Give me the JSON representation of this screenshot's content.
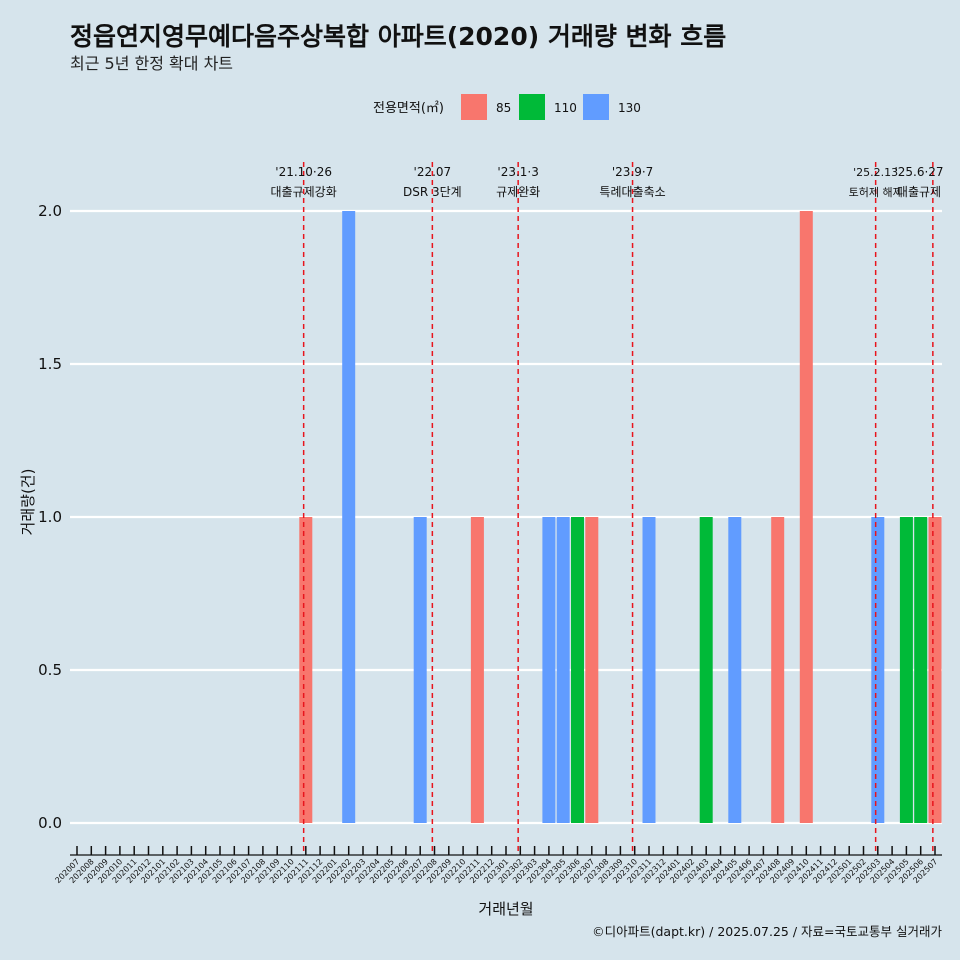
{
  "chart_data": {
    "type": "bar",
    "title": "정읍연지영무예다음주상복합 아파트(2020) 거래량 변화 흐름",
    "subtitle": "최근 5년 한정 확대 차트",
    "xlabel": "거래년월",
    "ylabel": "거래량(건)",
    "caption": "©디아파트(dapt.kr) / 2025.07.25 / 자료=국토교통부 실거래가",
    "ylim": [
      -0.08,
      2.1
    ],
    "yticks": [
      0.0,
      0.5,
      1.0,
      1.5,
      2.0
    ],
    "ytick_labels": [
      "0.0",
      "0.5",
      "1.0",
      "1.5",
      "2.0"
    ],
    "grid": true,
    "legend": {
      "title": "전용면적(㎡)",
      "position": "top",
      "entries": [
        {
          "label": "85",
          "color": "#f8766d"
        },
        {
          "label": "110",
          "color": "#00ba38"
        },
        {
          "label": "130",
          "color": "#619cff"
        }
      ]
    },
    "categories": [
      "202007",
      "202008",
      "202009",
      "202010",
      "202011",
      "202012",
      "202101",
      "202102",
      "202103",
      "202104",
      "202105",
      "202106",
      "202107",
      "202108",
      "202109",
      "202110",
      "202111",
      "202112",
      "202201",
      "202202",
      "202203",
      "202204",
      "202205",
      "202206",
      "202207",
      "202208",
      "202209",
      "202210",
      "202211",
      "202212",
      "202301",
      "202302",
      "202303",
      "202304",
      "202305",
      "202306",
      "202307",
      "202308",
      "202309",
      "202310",
      "202311",
      "202312",
      "202401",
      "202402",
      "202403",
      "202404",
      "202405",
      "202406",
      "202407",
      "202408",
      "202409",
      "202410",
      "202411",
      "202412",
      "202501",
      "202502",
      "202503",
      "202504",
      "202505",
      "202506",
      "202507"
    ],
    "bars": [
      {
        "month": "202111",
        "area": "85",
        "value": 1
      },
      {
        "month": "202202",
        "area": "130",
        "value": 2
      },
      {
        "month": "202207",
        "area": "130",
        "value": 1
      },
      {
        "month": "202211",
        "area": "85",
        "value": 1
      },
      {
        "month": "202304",
        "area": "130",
        "value": 1
      },
      {
        "month": "202305",
        "area": "130",
        "value": 1
      },
      {
        "month": "202306",
        "area": "110",
        "value": 1
      },
      {
        "month": "202307",
        "area": "85",
        "value": 1
      },
      {
        "month": "202311",
        "area": "130",
        "value": 1
      },
      {
        "month": "202403",
        "area": "110",
        "value": 1
      },
      {
        "month": "202405",
        "area": "130",
        "value": 1
      },
      {
        "month": "202408",
        "area": "85",
        "value": 1
      },
      {
        "month": "202410",
        "area": "85",
        "value": 2
      },
      {
        "month": "202503",
        "area": "130",
        "value": 1
      },
      {
        "month": "202505",
        "area": "110",
        "value": 1
      },
      {
        "month": "202506",
        "area": "110",
        "value": 1
      },
      {
        "month": "202507",
        "area": "85",
        "value": 1
      }
    ],
    "annotations": [
      {
        "month_pos": 15.85,
        "line1": "'21.10·26",
        "line2": "대출규제강화"
      },
      {
        "month_pos": 24.85,
        "line1": "'22.07",
        "line2": "DSR 3단계"
      },
      {
        "month_pos": 30.85,
        "line1": "'23.1·3",
        "line2": "규제완화"
      },
      {
        "month_pos": 38.85,
        "line1": "'23.9·7",
        "line2": "특례대출축소"
      },
      {
        "month_pos": 55.85,
        "line1": "'25.2.13",
        "line2": "토허제 해제"
      },
      {
        "month_pos": 59.85,
        "line1": "'25.6·27",
        "line2": "대출규제"
      }
    ]
  }
}
